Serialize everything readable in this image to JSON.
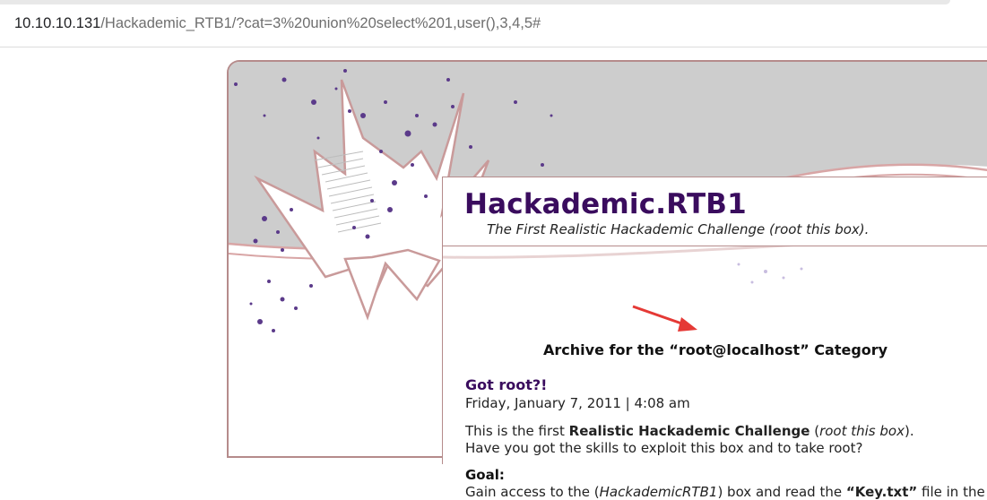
{
  "browser": {
    "url_host": "10.10.10.131",
    "url_path": "/Hackademic_RTB1/?cat=3%20union%20select%201,user(),3,4,5#"
  },
  "blog": {
    "title": "Hackademic.RTB1",
    "description": "The First Realistic Hackademic Challenge (root this box)."
  },
  "archive": {
    "prefix": "Archive for the ",
    "category": "“root@localhost”",
    "suffix": " Category"
  },
  "post": {
    "title": "Got root?!",
    "date": "Friday, January 7, 2011 | 4:08 am",
    "intro_pre": "This is the first ",
    "intro_bold": "Realistic Hackademic Challenge",
    "intro_mid": " (",
    "intro_italic": "root this box",
    "intro_post": ").",
    "line2": "Have you got the skills to exploit this box and to take root?",
    "goal_heading": "Goal:",
    "goal_pre": "Gain access to the (",
    "goal_italic": "HackademicRTB1",
    "goal_mid": ") box and read the ",
    "goal_bold": "“Key.txt”",
    "goal_post": " file in the"
  },
  "colors": {
    "title": "#3a0c5e",
    "frame": "#b58b8b",
    "annotation_arrow": "#e53935",
    "header_gray": "#cfcfcf",
    "dots": "#5b3a8a"
  }
}
